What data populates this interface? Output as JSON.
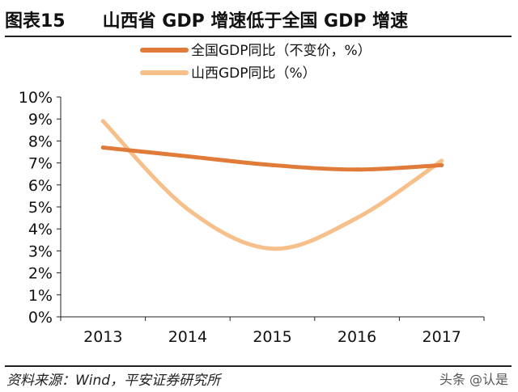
{
  "header": {
    "figure_label": "图表15",
    "title": "山西省 GDP 增速低于全国 GDP 增速"
  },
  "footer": {
    "source": "资料来源：Wind，平安证券研究所",
    "watermark": "头条 @认是"
  },
  "chart_data": {
    "type": "line",
    "x": [
      "2013",
      "2014",
      "2015",
      "2016",
      "2017"
    ],
    "ylim": [
      0,
      10
    ],
    "yticks": [
      "0%",
      "1%",
      "2%",
      "3%",
      "4%",
      "5%",
      "6%",
      "7%",
      "8%",
      "9%",
      "10%"
    ],
    "xlabel": "",
    "ylabel": "",
    "grid": false,
    "legend_position": "top",
    "series": [
      {
        "name": "全国GDP同比（不变价，%）",
        "values": [
          7.7,
          7.3,
          6.9,
          6.7,
          6.9
        ],
        "color": "#E07B39"
      },
      {
        "name": "山西GDP同比（%）",
        "values": [
          8.9,
          4.9,
          3.1,
          4.5,
          7.1
        ],
        "color": "#F7C08A"
      }
    ]
  }
}
